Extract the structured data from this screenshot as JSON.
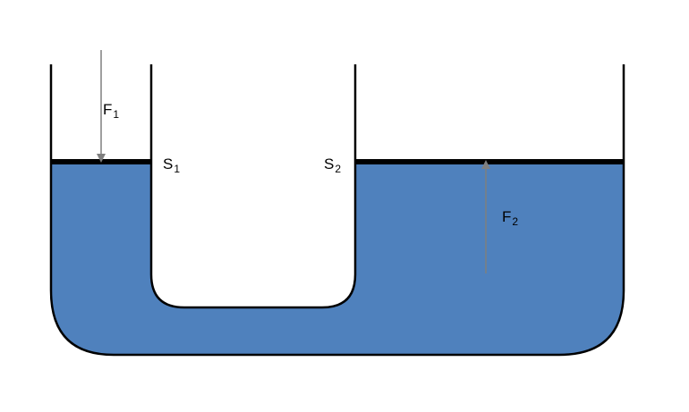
{
  "diagram": {
    "labels": {
      "force_left": {
        "main": "F",
        "sub": "1"
      },
      "force_right": {
        "main": "F",
        "sub": "2"
      },
      "area_left": {
        "main": "S",
        "sub": "1"
      },
      "area_right": {
        "main": "S",
        "sub": "2"
      }
    },
    "colors": {
      "fluid": "#4f81bd",
      "wall": "#000000",
      "piston": "#000000",
      "arrow": "#7f7f7f",
      "background": "#ffffff"
    }
  }
}
